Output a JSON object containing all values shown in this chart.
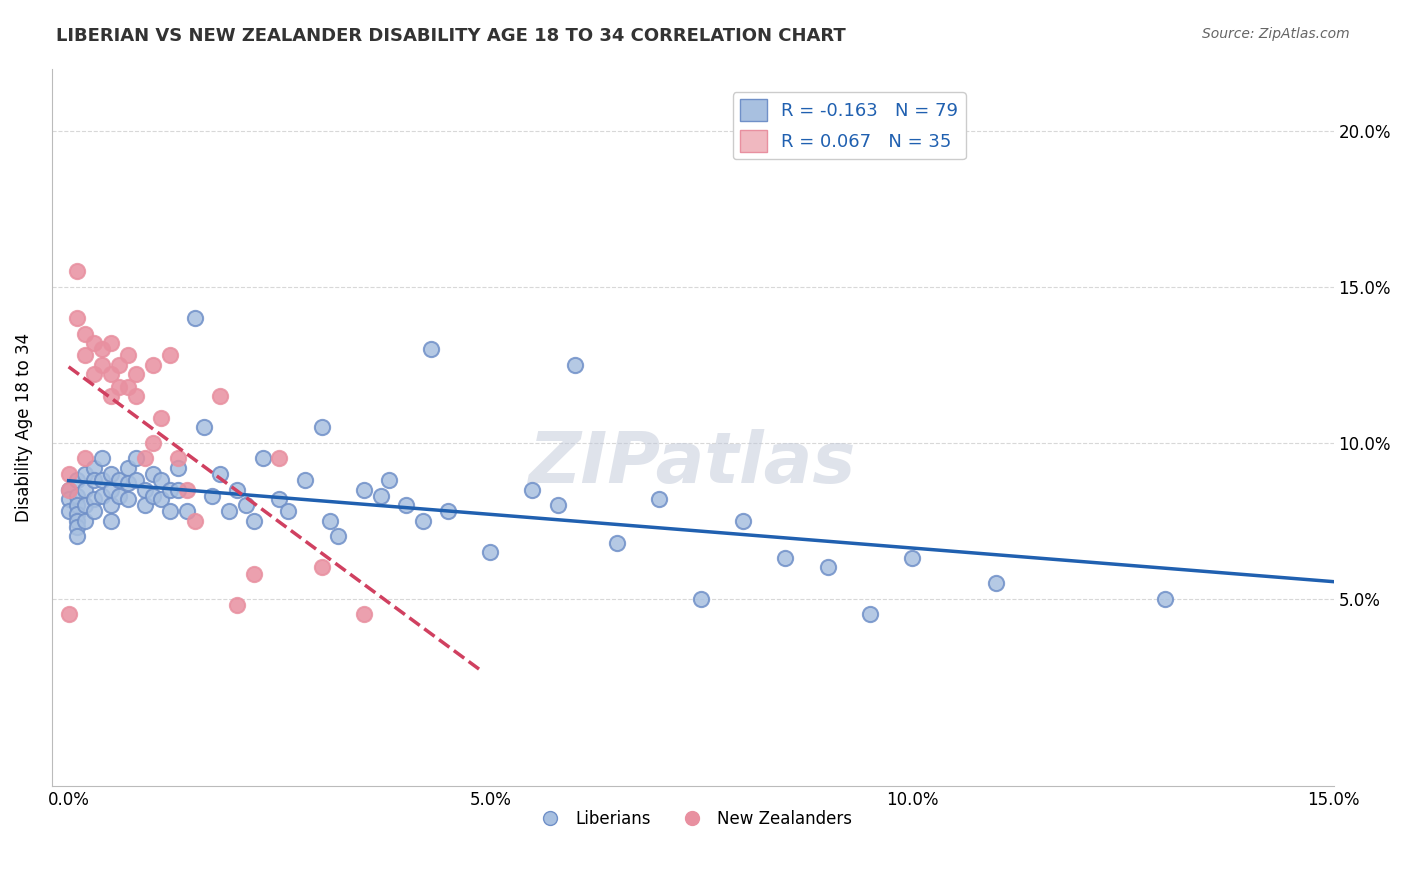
{
  "title": "LIBERIAN VS NEW ZEALANDER DISABILITY AGE 18 TO 34 CORRELATION CHART",
  "source": "Source: ZipAtlas.com",
  "xlabel_bottom": "",
  "ylabel": "Disability Age 18 to 34",
  "x_label_ticks": [
    "0.0%",
    "15.0%"
  ],
  "y_label_ticks": [
    "5.0%",
    "10.0%",
    "15.0%",
    "20.0%"
  ],
  "xlim": [
    0.0,
    0.15
  ],
  "ylim": [
    -0.01,
    0.22
  ],
  "liberian_R": -0.163,
  "liberian_N": 79,
  "nz_R": 0.067,
  "nz_N": 35,
  "liberian_color": "#7090C8",
  "liberian_color_light": "#A8C0E0",
  "nz_color": "#E890A0",
  "nz_color_light": "#F0B8C0",
  "trend_liberian_color": "#2060B0",
  "trend_nz_color": "#D04060",
  "watermark": "ZIPatlas",
  "watermark_color": "#C0C8D8",
  "legend_box_color": "#A8C0E0",
  "legend_box_nz_color": "#F0B8C0",
  "liberian_x": [
    0.0,
    0.0,
    0.0,
    0.001,
    0.001,
    0.001,
    0.001,
    0.001,
    0.001,
    0.001,
    0.002,
    0.002,
    0.002,
    0.002,
    0.003,
    0.003,
    0.003,
    0.003,
    0.004,
    0.004,
    0.004,
    0.005,
    0.005,
    0.005,
    0.005,
    0.006,
    0.006,
    0.007,
    0.007,
    0.007,
    0.008,
    0.008,
    0.009,
    0.009,
    0.01,
    0.01,
    0.011,
    0.011,
    0.012,
    0.012,
    0.013,
    0.013,
    0.014,
    0.015,
    0.016,
    0.017,
    0.018,
    0.019,
    0.02,
    0.021,
    0.022,
    0.023,
    0.025,
    0.026,
    0.028,
    0.03,
    0.031,
    0.032,
    0.035,
    0.037,
    0.038,
    0.04,
    0.042,
    0.043,
    0.045,
    0.05,
    0.055,
    0.058,
    0.06,
    0.065,
    0.07,
    0.075,
    0.08,
    0.085,
    0.09,
    0.095,
    0.1,
    0.11,
    0.13
  ],
  "liberian_y": [
    0.085,
    0.082,
    0.078,
    0.088,
    0.083,
    0.08,
    0.077,
    0.075,
    0.073,
    0.07,
    0.09,
    0.085,
    0.08,
    0.075,
    0.092,
    0.088,
    0.082,
    0.078,
    0.095,
    0.088,
    0.083,
    0.09,
    0.085,
    0.08,
    0.075,
    0.088,
    0.083,
    0.092,
    0.087,
    0.082,
    0.095,
    0.088,
    0.085,
    0.08,
    0.09,
    0.083,
    0.088,
    0.082,
    0.085,
    0.078,
    0.092,
    0.085,
    0.078,
    0.14,
    0.105,
    0.083,
    0.09,
    0.078,
    0.085,
    0.08,
    0.075,
    0.095,
    0.082,
    0.078,
    0.088,
    0.105,
    0.075,
    0.07,
    0.085,
    0.083,
    0.088,
    0.08,
    0.075,
    0.13,
    0.078,
    0.065,
    0.085,
    0.08,
    0.125,
    0.068,
    0.082,
    0.05,
    0.075,
    0.063,
    0.06,
    0.045,
    0.063,
    0.055,
    0.05
  ],
  "nz_x": [
    0.0,
    0.0,
    0.0,
    0.001,
    0.001,
    0.002,
    0.002,
    0.002,
    0.003,
    0.003,
    0.004,
    0.004,
    0.005,
    0.005,
    0.005,
    0.006,
    0.006,
    0.007,
    0.007,
    0.008,
    0.008,
    0.009,
    0.01,
    0.01,
    0.011,
    0.012,
    0.013,
    0.014,
    0.015,
    0.018,
    0.02,
    0.022,
    0.025,
    0.03,
    0.035
  ],
  "nz_y": [
    0.09,
    0.085,
    0.045,
    0.155,
    0.14,
    0.135,
    0.128,
    0.095,
    0.132,
    0.122,
    0.13,
    0.125,
    0.132,
    0.122,
    0.115,
    0.125,
    0.118,
    0.128,
    0.118,
    0.122,
    0.115,
    0.095,
    0.125,
    0.1,
    0.108,
    0.128,
    0.095,
    0.085,
    0.075,
    0.115,
    0.048,
    0.058,
    0.095,
    0.06,
    0.045
  ]
}
